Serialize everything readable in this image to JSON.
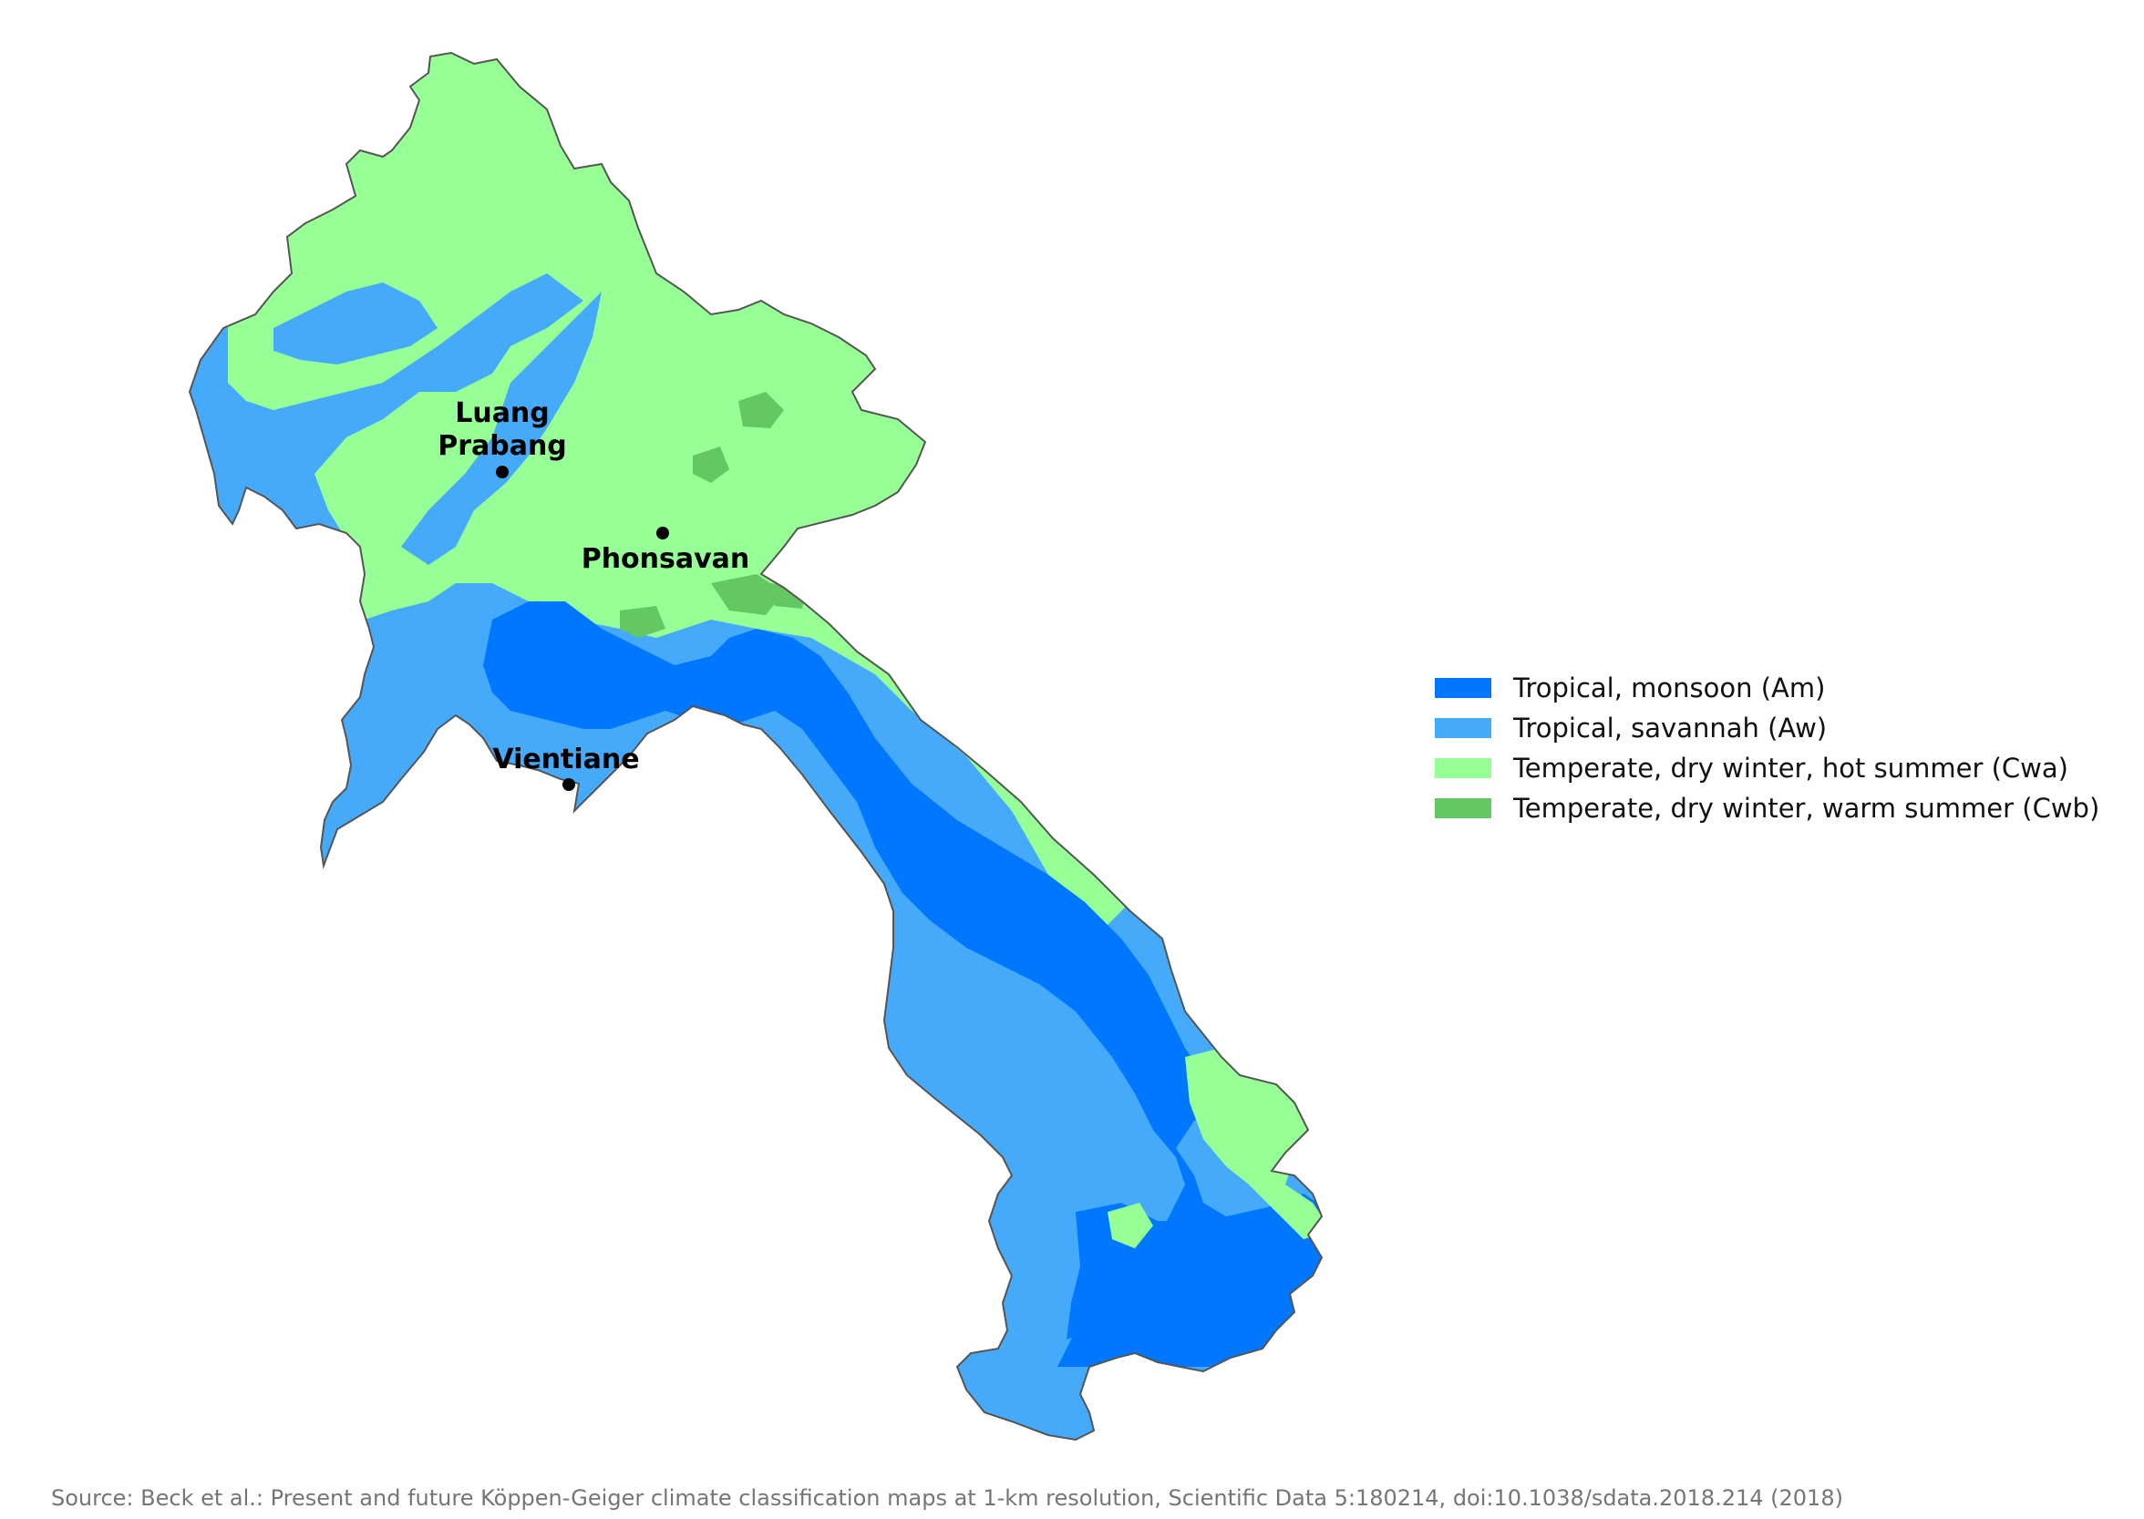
{
  "colors": {
    "Am": "#0077ff",
    "Aw": "#46aafa",
    "Cwa": "#96ff96",
    "Cwb": "#63c764",
    "border": "#555555"
  },
  "cities": [
    {
      "name": "Luang",
      "name2": "Prabang"
    },
    {
      "name": "Phonsavan"
    },
    {
      "name": "Vientiane"
    }
  ],
  "legend": [
    {
      "label": "Tropical, monsoon (Am)",
      "color": "#0077ff"
    },
    {
      "label": "Tropical, savannah (Aw)",
      "color": "#46aafa"
    },
    {
      "label": "Temperate, dry winter, hot summer (Cwa)",
      "color": "#96ff96"
    },
    {
      "label": "Temperate, dry winter, warm summer (Cwb)",
      "color": "#63c764"
    }
  ],
  "source": "Source: Beck et al.: Present and future Köppen-Geiger climate classification maps at 1-km resolution, Scientific Data 5:180214, doi:10.1038/sdata.2018.214 (2018)"
}
